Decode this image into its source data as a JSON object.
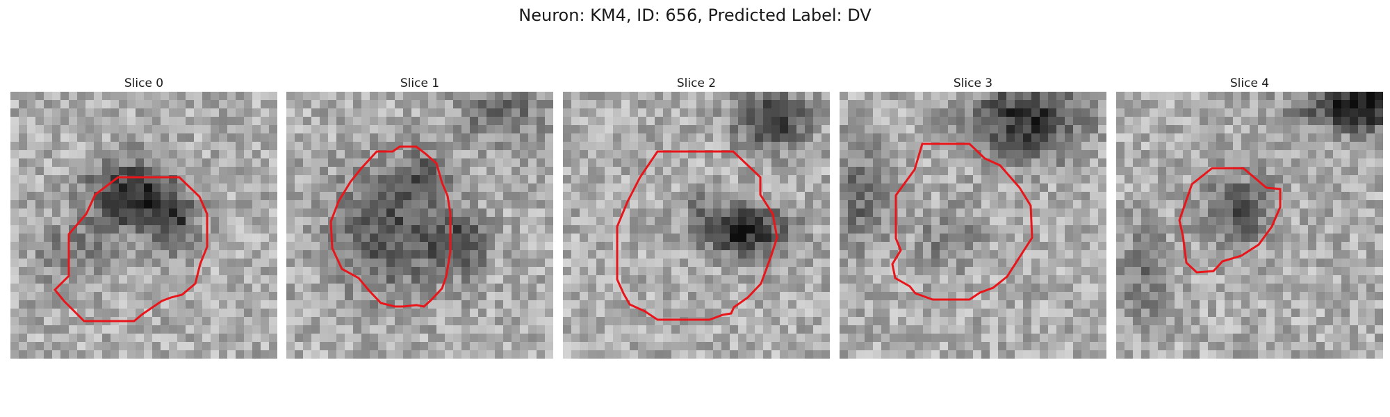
{
  "figure": {
    "title": "Neuron: KM4, ID: 656, Predicted Label: DV"
  },
  "slices": [
    {
      "label": "Slice 0"
    },
    {
      "label": "Slice 1"
    },
    {
      "label": "Slice 2"
    },
    {
      "label": "Slice 3"
    },
    {
      "label": "Slice 4"
    }
  ],
  "colors": {
    "contour": "#e8161b",
    "background": "#ffffff"
  }
}
